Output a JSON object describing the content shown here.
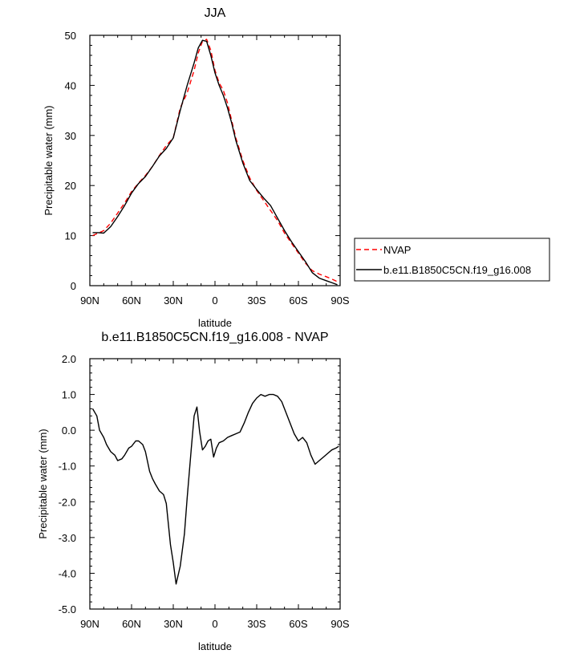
{
  "chart_data": [
    {
      "type": "line",
      "title": "JJA",
      "xlabel": "latitude",
      "ylabel": "Precipitable water (mm)",
      "xlim": [
        -90,
        90
      ],
      "ylim": [
        0,
        50
      ],
      "x_tick_values": [
        -90,
        -60,
        -30,
        0,
        30,
        60,
        90
      ],
      "x_tick_labels": [
        "90N",
        "60N",
        "30N",
        "0",
        "30S",
        "60S",
        "90S"
      ],
      "y_tick_values": [
        0,
        10,
        20,
        30,
        40,
        50
      ],
      "y_tick_labels": [
        "0",
        "10",
        "20",
        "30",
        "40",
        "50"
      ],
      "legend_position": "right",
      "series": [
        {
          "name": "NVAP",
          "color": "#ff0000",
          "dash": true,
          "x": [
            -88,
            -84,
            -80,
            -75,
            -70,
            -65,
            -60,
            -55,
            -50,
            -45,
            -40,
            -35,
            -30,
            -25,
            -20,
            -15,
            -12,
            -9,
            -6,
            -3,
            0,
            3,
            6,
            9,
            12,
            15,
            20,
            25,
            30,
            35,
            40,
            45,
            50,
            55,
            60,
            65,
            70,
            75,
            80,
            85,
            88
          ],
          "y": [
            10.0,
            10.5,
            11.0,
            12.5,
            14.5,
            16.5,
            18.8,
            20.5,
            22.0,
            23.8,
            26.0,
            28.0,
            29.5,
            35.5,
            38.5,
            43.0,
            46.5,
            48.8,
            49.2,
            47.0,
            43.0,
            40.5,
            39.0,
            36.5,
            33.0,
            29.5,
            25.0,
            21.5,
            19.0,
            17.0,
            15.0,
            13.0,
            10.5,
            8.5,
            6.5,
            4.5,
            3.0,
            2.3,
            1.8,
            1.2,
            0.8
          ]
        },
        {
          "name": "b.e11.B1850C5CN.f19_g16.008",
          "color": "#000000",
          "dash": false,
          "x": [
            -88,
            -84,
            -80,
            -75,
            -70,
            -65,
            -60,
            -55,
            -50,
            -45,
            -40,
            -35,
            -30,
            -25,
            -20,
            -15,
            -12,
            -9,
            -6,
            -3,
            0,
            3,
            6,
            9,
            12,
            15,
            20,
            25,
            30,
            35,
            40,
            45,
            50,
            55,
            60,
            65,
            70,
            75,
            80,
            85,
            88
          ],
          "y": [
            10.6,
            10.6,
            10.5,
            11.8,
            13.8,
            16.0,
            18.5,
            20.4,
            21.8,
            23.8,
            25.9,
            27.4,
            29.5,
            35.0,
            40.0,
            44.5,
            47.5,
            49.0,
            48.8,
            46.0,
            42.5,
            40.0,
            38.0,
            35.5,
            32.5,
            29.0,
            24.5,
            21.0,
            19.2,
            17.5,
            16.0,
            13.5,
            11.0,
            8.8,
            6.8,
            4.8,
            2.6,
            1.5,
            1.0,
            0.5,
            0.2
          ]
        }
      ]
    },
    {
      "type": "line",
      "title": "b.e11.B1850C5CN.f19_g16.008 - NVAP",
      "xlabel": "latitude",
      "ylabel": "Precipitable water (mm)",
      "xlim": [
        -90,
        90
      ],
      "ylim": [
        -5,
        2
      ],
      "x_tick_values": [
        -90,
        -60,
        -30,
        0,
        30,
        60,
        90
      ],
      "x_tick_labels": [
        "90N",
        "60N",
        "30N",
        "0",
        "30S",
        "60S",
        "90S"
      ],
      "y_tick_values": [
        2,
        1,
        0,
        -1,
        -2,
        -3,
        -4,
        -5
      ],
      "y_tick_labels": [
        "2.0",
        "1.0",
        "0.0",
        "-1.0",
        "-2.0",
        "-3.0",
        "-4.0",
        "-5.0"
      ],
      "series": [
        {
          "name": "",
          "color": "#000000",
          "dash": false,
          "x": [
            -88,
            -85,
            -83,
            -80,
            -78,
            -75,
            -72,
            -70,
            -67,
            -65,
            -62,
            -60,
            -57,
            -55,
            -52,
            -50,
            -47,
            -45,
            -43,
            -40,
            -37,
            -35,
            -32,
            -30,
            -28,
            -25,
            -22,
            -20,
            -17,
            -15,
            -13,
            -11,
            -9,
            -7,
            -5,
            -3,
            -1,
            1,
            3,
            6,
            9,
            12,
            15,
            18,
            21,
            24,
            27,
            30,
            33,
            36,
            39,
            42,
            45,
            48,
            51,
            54,
            57,
            60,
            63,
            66,
            69,
            72,
            75,
            78,
            81,
            84,
            87,
            89
          ],
          "y": [
            0.6,
            0.4,
            0.0,
            -0.2,
            -0.4,
            -0.6,
            -0.7,
            -0.85,
            -0.8,
            -0.7,
            -0.5,
            -0.45,
            -0.3,
            -0.3,
            -0.4,
            -0.6,
            -1.15,
            -1.35,
            -1.5,
            -1.7,
            -1.8,
            -2.05,
            -3.2,
            -3.7,
            -4.3,
            -3.8,
            -2.9,
            -1.9,
            -0.5,
            0.4,
            0.65,
            -0.05,
            -0.55,
            -0.45,
            -0.3,
            -0.25,
            -0.75,
            -0.5,
            -0.35,
            -0.3,
            -0.2,
            -0.15,
            -0.1,
            -0.05,
            0.2,
            0.5,
            0.75,
            0.9,
            1.0,
            0.95,
            1.0,
            1.0,
            0.95,
            0.8,
            0.5,
            0.2,
            -0.1,
            -0.3,
            -0.2,
            -0.35,
            -0.7,
            -0.95,
            -0.85,
            -0.75,
            -0.65,
            -0.55,
            -0.5,
            -0.45
          ]
        }
      ]
    }
  ]
}
